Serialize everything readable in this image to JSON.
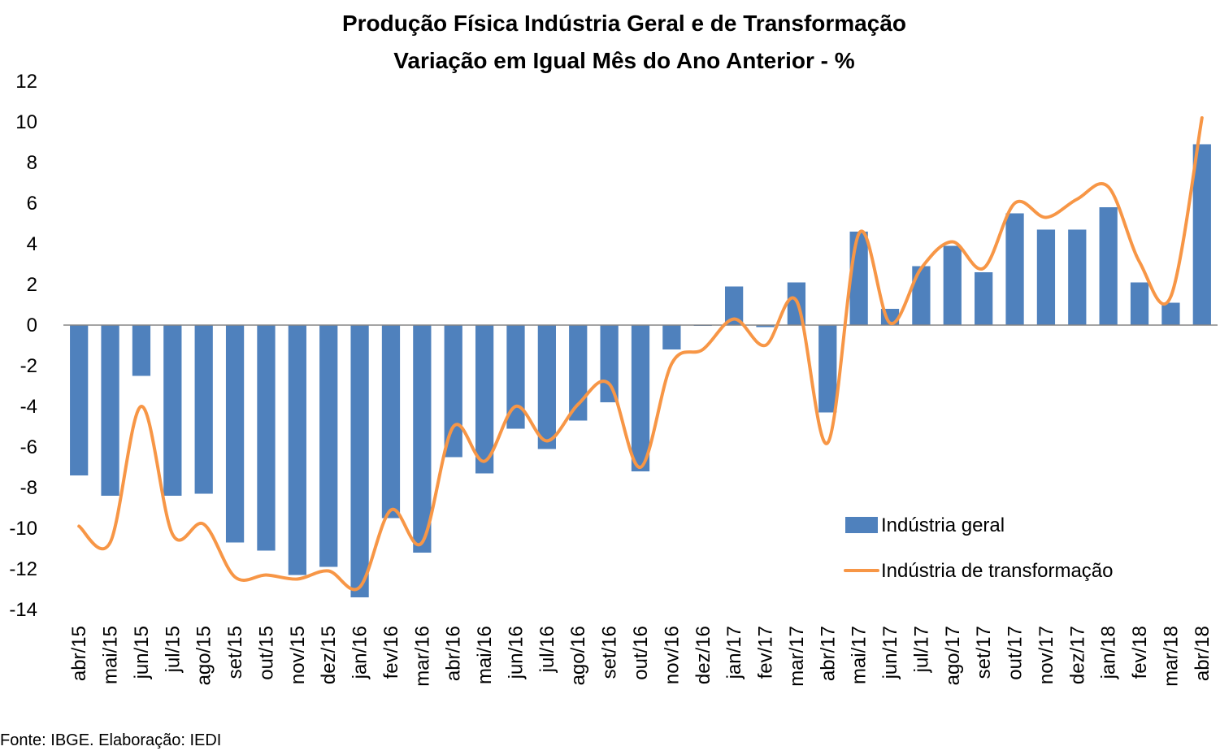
{
  "chart_data": {
    "type": "bar",
    "title": [
      "Produção Física Indústria Geral e de Transformação",
      "Variação em Igual Mês do Ano Anterior - %"
    ],
    "categories": [
      "abr/15",
      "mai/15",
      "jun/15",
      "jul/15",
      "ago/15",
      "set/15",
      "out/15",
      "nov/15",
      "dez/15",
      "jan/16",
      "fev/16",
      "mar/16",
      "abr/16",
      "mai/16",
      "jun/16",
      "jul/16",
      "ago/16",
      "set/16",
      "out/16",
      "nov/16",
      "dez/16",
      "jan/17",
      "fev/17",
      "mar/17",
      "abr/17",
      "mai/17",
      "jun/17",
      "jul/17",
      "ago/17",
      "set/17",
      "out/17",
      "nov/17",
      "dez/17",
      "jan/18",
      "fev/18",
      "mar/18",
      "abr/18"
    ],
    "series": [
      {
        "name": "Indústria geral",
        "type": "bar",
        "color": "#4F81BD",
        "values": [
          -7.4,
          -8.4,
          -2.5,
          -8.4,
          -8.3,
          -10.7,
          -11.1,
          -12.3,
          -11.9,
          -13.4,
          -9.5,
          -11.2,
          -6.5,
          -7.3,
          -5.1,
          -6.1,
          -4.7,
          -3.8,
          -7.2,
          -1.2,
          0.0,
          1.9,
          -0.1,
          2.1,
          -4.3,
          4.6,
          0.8,
          2.9,
          3.9,
          2.6,
          5.5,
          4.7,
          4.7,
          5.8,
          2.1,
          1.1,
          8.9
        ]
      },
      {
        "name": "Indústria de transformação",
        "type": "line",
        "color": "#F79646",
        "values": [
          -9.9,
          -10.7,
          -4.0,
          -10.3,
          -9.8,
          -12.4,
          -12.3,
          -12.5,
          -12.1,
          -12.9,
          -9.1,
          -10.7,
          -5.0,
          -6.7,
          -4.0,
          -5.7,
          -3.9,
          -2.9,
          -7.0,
          -1.9,
          -1.2,
          0.3,
          -1.0,
          1.2,
          -5.8,
          4.5,
          0.1,
          2.8,
          4.1,
          2.8,
          6.0,
          5.3,
          6.2,
          6.8,
          3.1,
          1.4,
          10.2
        ]
      }
    ],
    "ylim": [
      -14,
      12
    ],
    "yticks": [
      "12",
      "10",
      "8",
      "6",
      "4",
      "2",
      "0",
      "-2",
      "-4",
      "-6",
      "-8",
      "-10",
      "-12",
      "-14"
    ],
    "xlabel": "",
    "ylabel": "",
    "grid": false,
    "legend_position": "bottom-right"
  },
  "source_note": "Fonte: IBGE. Elaboração: IEDI"
}
